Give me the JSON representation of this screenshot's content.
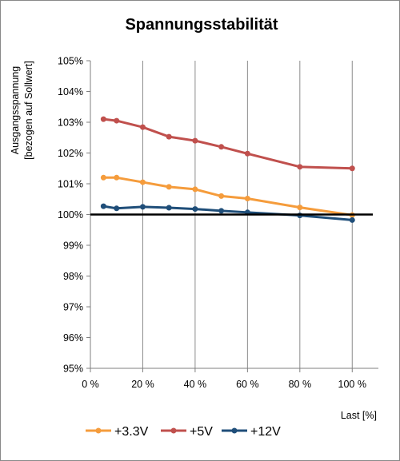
{
  "chart_data": {
    "type": "line",
    "title": "Spannungsstabilität",
    "ylabel_lines": [
      "Ausgangsspannung",
      "[bezogen auf Sollwert]"
    ],
    "xlabel": "Last [%]",
    "x_ticks": [
      0,
      20,
      40,
      60,
      80,
      100
    ],
    "x_tick_labels": [
      "0 %",
      "20 %",
      "40 %",
      "60 %",
      "80 %",
      "100 %"
    ],
    "xlim": [
      0,
      110
    ],
    "y_ticks": [
      95,
      96,
      97,
      98,
      99,
      100,
      101,
      102,
      103,
      104,
      105
    ],
    "y_tick_labels": [
      "95%",
      "96%",
      "97%",
      "98%",
      "99%",
      "100%",
      "101%",
      "102%",
      "103%",
      "104%",
      "105%"
    ],
    "ylim": [
      95,
      105
    ],
    "grid": "vertical",
    "legend_position": "bottom",
    "reference_line": {
      "y": 100,
      "color": "#000000"
    },
    "series": [
      {
        "name": "+3.3V",
        "color": "#f59c3c",
        "x": [
          5,
          10,
          20,
          30,
          40,
          50,
          60,
          80,
          100
        ],
        "y": [
          101.2,
          101.2,
          101.05,
          100.9,
          100.82,
          100.6,
          100.52,
          100.23,
          99.98
        ]
      },
      {
        "name": "+5V",
        "color": "#c0504d",
        "x": [
          5,
          10,
          20,
          30,
          40,
          50,
          60,
          80,
          100
        ],
        "y": [
          103.1,
          103.05,
          102.84,
          102.53,
          102.4,
          102.2,
          101.98,
          101.55,
          101.5
        ]
      },
      {
        "name": "+12V",
        "color": "#1f4e79",
        "x": [
          5,
          10,
          20,
          30,
          40,
          50,
          60,
          80,
          100
        ],
        "y": [
          100.27,
          100.2,
          100.25,
          100.22,
          100.18,
          100.12,
          100.07,
          99.97,
          99.82
        ]
      }
    ]
  }
}
